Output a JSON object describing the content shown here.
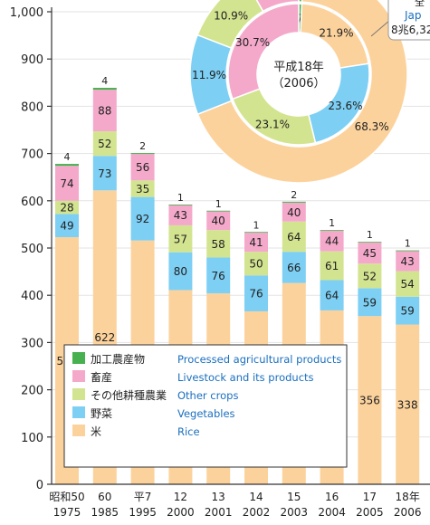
{
  "chart_data": {
    "type": "bar",
    "stacked": true,
    "categories": [
      {
        "jp": "昭和50",
        "year": "1975"
      },
      {
        "jp": "60",
        "year": "1985"
      },
      {
        "jp": "平7",
        "year": "1995"
      },
      {
        "jp": "12",
        "year": "2000"
      },
      {
        "jp": "13",
        "year": "2001"
      },
      {
        "jp": "14",
        "year": "2002"
      },
      {
        "jp": "15",
        "year": "2003"
      },
      {
        "jp": "16",
        "year": "2004"
      },
      {
        "jp": "17",
        "year": "2005"
      },
      {
        "jp": "18年",
        "year": "2006"
      }
    ],
    "series": [
      {
        "name": "米",
        "name_en": "Rice",
        "color": "#fcd29c",
        "values": [
          523,
          622,
          516,
          411,
          404,
          366,
          426,
          368,
          356,
          338
        ]
      },
      {
        "name": "野菜",
        "name_en": "Vegetables",
        "color": "#7dcff4",
        "values": [
          49,
          73,
          92,
          80,
          76,
          76,
          66,
          64,
          59,
          59
        ]
      },
      {
        "name": "その他耕種農業",
        "name_en": "Other crops",
        "color": "#d3e490",
        "values": [
          28,
          52,
          35,
          57,
          58,
          50,
          64,
          61,
          52,
          54
        ]
      },
      {
        "name": "畜産",
        "name_en": "Livestock and its products",
        "color": "#f4a9cb",
        "values": [
          74,
          88,
          56,
          43,
          40,
          41,
          40,
          44,
          45,
          43
        ]
      },
      {
        "name": "加工農産物",
        "name_en": "Processed agricultural products",
        "color": "#47b04f",
        "values": [
          4,
          4,
          2,
          1,
          1,
          1,
          2,
          1,
          1,
          1
        ]
      }
    ],
    "ylim": [
      0,
      1000
    ],
    "yticks": [
      0,
      100,
      200,
      300,
      400,
      500,
      600,
      700,
      800,
      900,
      1000
    ],
    "ytick_labels": [
      "0",
      "100",
      "200",
      "300",
      "400",
      "500",
      "600",
      "700",
      "800",
      "900",
      "1,000"
    ],
    "legend_position": "bottom-left",
    "donut": {
      "center_label": [
        "平成18年",
        "（2006）"
      ],
      "inner_ring": [
        {
          "label": "0.7%",
          "value": 0.7,
          "color": "#47b04f"
        },
        {
          "label": "21.9%",
          "value": 21.9,
          "color": "#fcd29c"
        },
        {
          "label": "23.6%",
          "value": 23.6,
          "color": "#7dcff4"
        },
        {
          "label": "23.1%",
          "value": 23.1,
          "color": "#d3e490"
        },
        {
          "label": "30.7%",
          "value": 30.7,
          "color": "#f4a9cb"
        }
      ],
      "outer_ring": [
        {
          "label": "",
          "value": 0.7,
          "color": "#47b04f"
        },
        {
          "label": "68.3%",
          "value": 68.3,
          "color": "#fcd29c"
        },
        {
          "label": "11.9%",
          "value": 11.9,
          "color": "#7dcff4"
        },
        {
          "label": "10.9%",
          "value": 10.9,
          "color": "#d3e490"
        },
        {
          "label": "",
          "value": 8.2,
          "color": "#f4a9cb"
        }
      ],
      "callout_lines": [
        "全",
        "Jap",
        "8兆6,32"
      ]
    }
  }
}
